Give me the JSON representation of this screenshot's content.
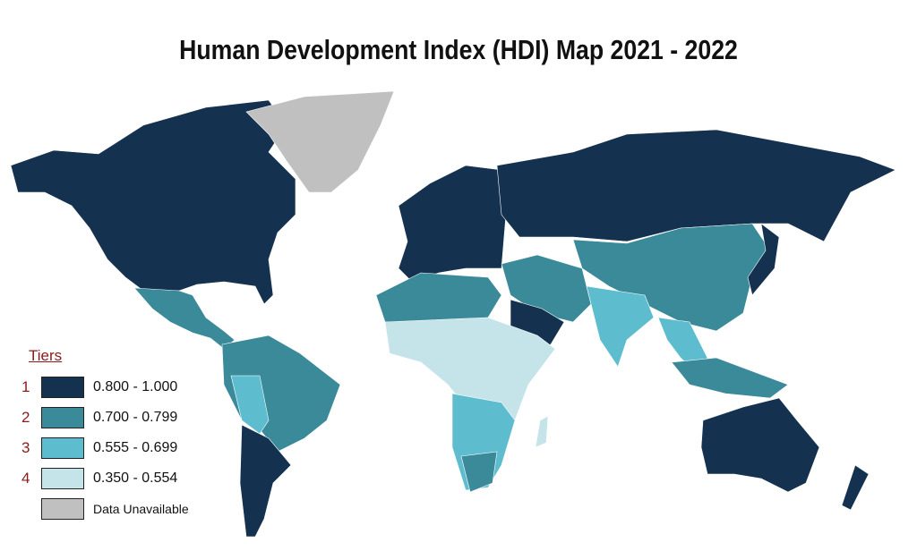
{
  "title": "Human Development Index (HDI) Map 2021 - 2022",
  "legend": {
    "title": "Tiers",
    "tiers": [
      {
        "number": "1",
        "range": "0.800 - 1.000",
        "color": "#14324f"
      },
      {
        "number": "2",
        "range": "0.700 - 0.799",
        "color": "#3a8a9a"
      },
      {
        "number": "3",
        "range": "0.555 - 0.699",
        "color": "#5dbdcf"
      },
      {
        "number": "4",
        "range": "0.350 - 0.554",
        "color": "#c5e4ea"
      }
    ],
    "unavailable": {
      "label": "Data Unavailable",
      "color": "#c0c0c0"
    }
  }
}
